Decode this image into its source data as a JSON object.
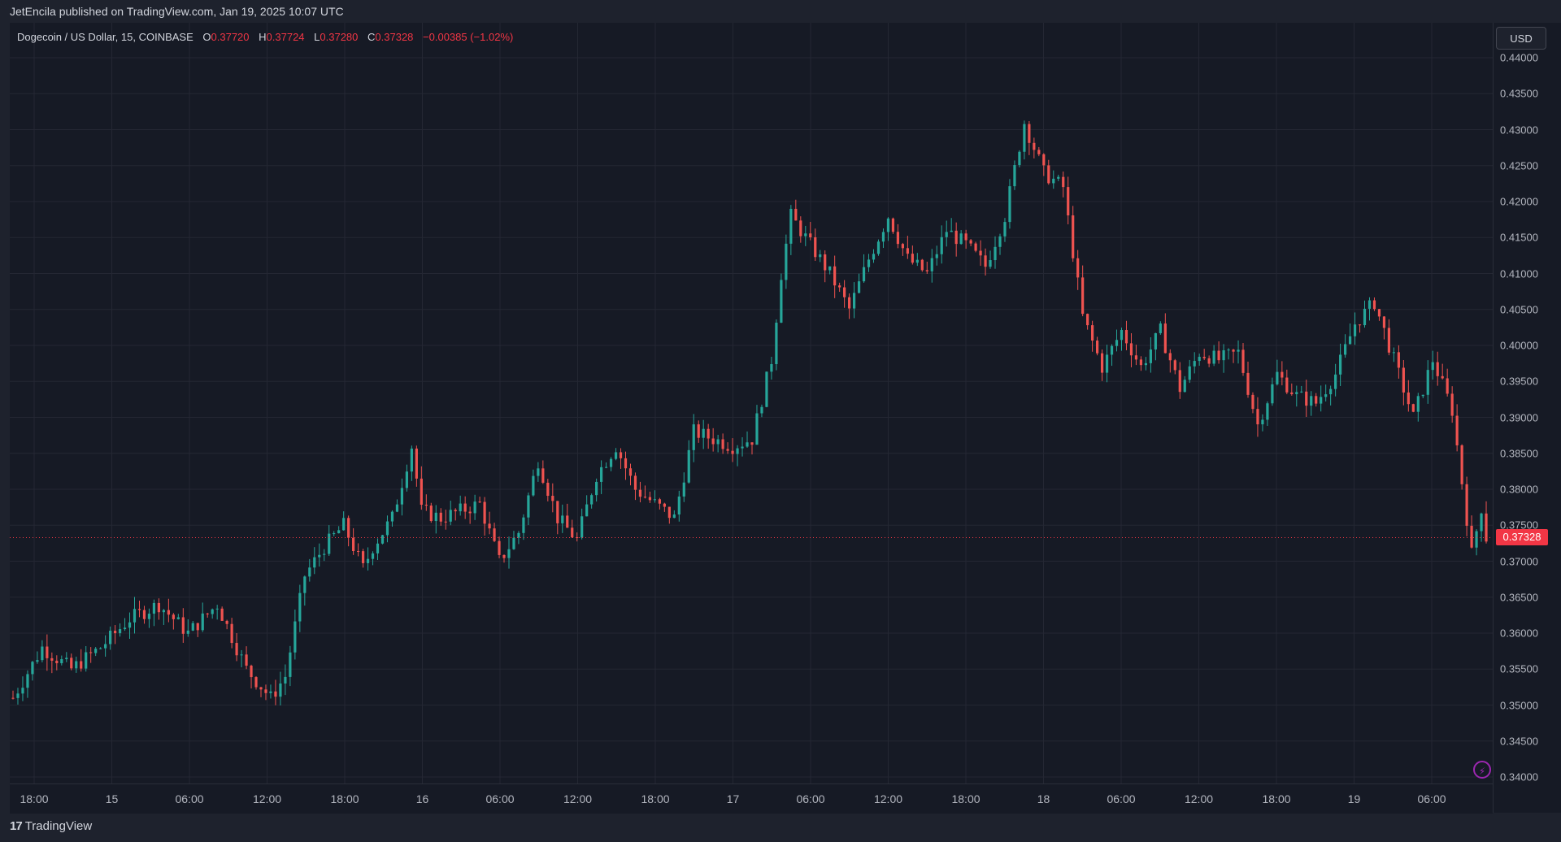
{
  "header": {
    "published": "JetEncila published on TradingView.com, Jan 19, 2025 10:07 UTC"
  },
  "legend": {
    "symbol": "Dogecoin / US Dollar, 15, COINBASE",
    "o_label": "O",
    "o_value": "0.37720",
    "h_label": "H",
    "h_value": "0.37724",
    "l_label": "L",
    "l_value": "0.37280",
    "c_label": "C",
    "c_value": "0.37328",
    "change": "−0.00385 (−1.02%)"
  },
  "currency_button": "USD",
  "last_price_label": "0.37328",
  "footer": {
    "brand_logo": "17",
    "brand_name": "TradingView"
  },
  "colors": {
    "up": "#26a69a",
    "down": "#ef5350",
    "background": "#161a25",
    "grid": "#242733"
  },
  "chart_data": {
    "type": "candlestick",
    "title": "Dogecoin / US Dollar, 15, COINBASE",
    "y_ticks": [
      "0.44000",
      "0.43500",
      "0.43000",
      "0.42500",
      "0.42000",
      "0.41500",
      "0.41000",
      "0.40500",
      "0.40000",
      "0.39500",
      "0.39000",
      "0.38500",
      "0.38000",
      "0.37500",
      "0.37000",
      "0.36500",
      "0.36000",
      "0.35500",
      "0.35000",
      "0.34500",
      "0.34000"
    ],
    "x_ticks": [
      "18:00",
      "15",
      "06:00",
      "12:00",
      "18:00",
      "16",
      "06:00",
      "12:00",
      "18:00",
      "17",
      "06:00",
      "12:00",
      "18:00",
      "18",
      "06:00",
      "12:00",
      "18:00",
      "19",
      "06:00"
    ],
    "ylim": [
      0.34,
      0.44
    ],
    "last_price": 0.37328,
    "grid": true,
    "path_points": [
      [
        0,
        0.351
      ],
      [
        6,
        0.358
      ],
      [
        12,
        0.355
      ],
      [
        18,
        0.358
      ],
      [
        24,
        0.362
      ],
      [
        30,
        0.364
      ],
      [
        36,
        0.36
      ],
      [
        42,
        0.364
      ],
      [
        48,
        0.355
      ],
      [
        53,
        0.351
      ],
      [
        56,
        0.354
      ],
      [
        60,
        0.368
      ],
      [
        64,
        0.372
      ],
      [
        68,
        0.375
      ],
      [
        72,
        0.369
      ],
      [
        74,
        0.372
      ],
      [
        78,
        0.376
      ],
      [
        82,
        0.386
      ],
      [
        84,
        0.377
      ],
      [
        88,
        0.376
      ],
      [
        92,
        0.377
      ],
      [
        96,
        0.378
      ],
      [
        100,
        0.37
      ],
      [
        104,
        0.374
      ],
      [
        108,
        0.384
      ],
      [
        112,
        0.376
      ],
      [
        116,
        0.373
      ],
      [
        120,
        0.382
      ],
      [
        124,
        0.386
      ],
      [
        128,
        0.38
      ],
      [
        132,
        0.378
      ],
      [
        136,
        0.376
      ],
      [
        140,
        0.388
      ],
      [
        144,
        0.387
      ],
      [
        148,
        0.386
      ],
      [
        152,
        0.387
      ],
      [
        156,
        0.398
      ],
      [
        158,
        0.41
      ],
      [
        160,
        0.418
      ],
      [
        164,
        0.414
      ],
      [
        168,
        0.41
      ],
      [
        172,
        0.405
      ],
      [
        176,
        0.412
      ],
      [
        180,
        0.418
      ],
      [
        184,
        0.412
      ],
      [
        188,
        0.41
      ],
      [
        192,
        0.416
      ],
      [
        196,
        0.414
      ],
      [
        200,
        0.411
      ],
      [
        204,
        0.418
      ],
      [
        208,
        0.431
      ],
      [
        212,
        0.424
      ],
      [
        216,
        0.422
      ],
      [
        220,
        0.404
      ],
      [
        224,
        0.397
      ],
      [
        228,
        0.402
      ],
      [
        232,
        0.397
      ],
      [
        236,
        0.402
      ],
      [
        240,
        0.394
      ],
      [
        244,
        0.399
      ],
      [
        248,
        0.398
      ],
      [
        252,
        0.399
      ],
      [
        256,
        0.389
      ],
      [
        260,
        0.396
      ],
      [
        264,
        0.393
      ],
      [
        268,
        0.392
      ],
      [
        272,
        0.396
      ],
      [
        276,
        0.403
      ],
      [
        280,
        0.406
      ],
      [
        284,
        0.398
      ],
      [
        288,
        0.39
      ],
      [
        292,
        0.398
      ],
      [
        296,
        0.391
      ],
      [
        298,
        0.381
      ],
      [
        300,
        0.371
      ],
      [
        302,
        0.3775
      ],
      [
        303,
        0.3733
      ]
    ]
  }
}
